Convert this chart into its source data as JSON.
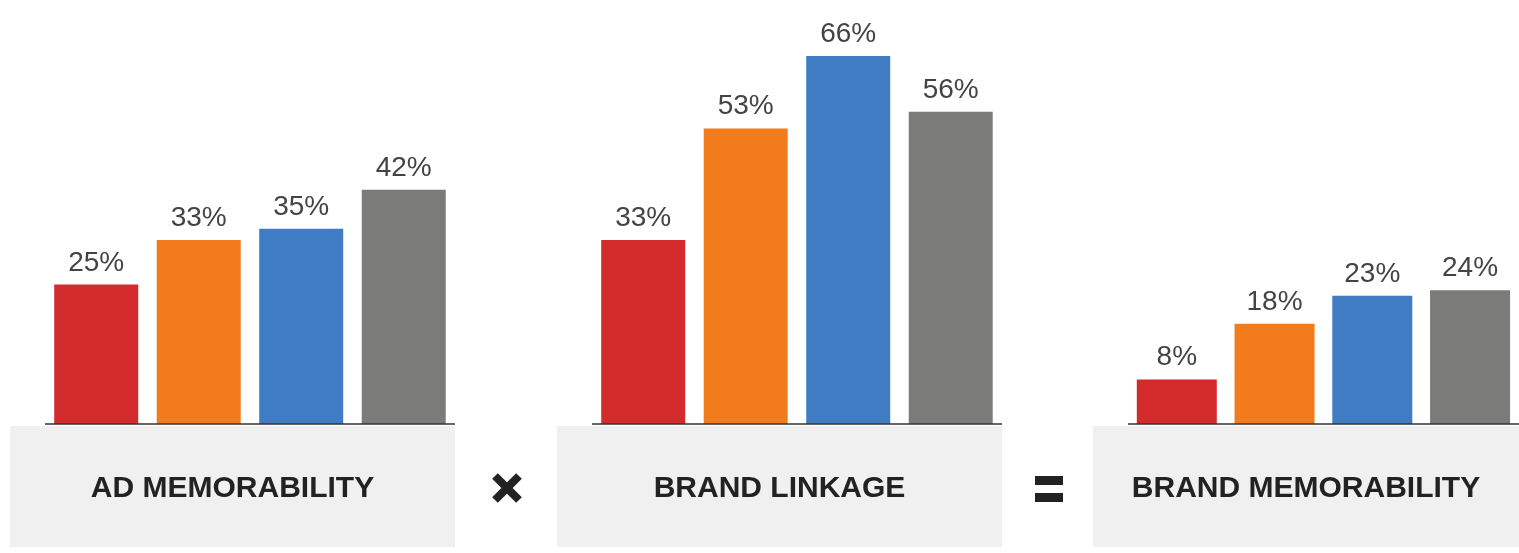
{
  "chart_data": [
    {
      "type": "bar",
      "title": "AD MEMORABILITY",
      "categories": [
        null,
        null,
        null,
        null
      ],
      "values": [
        25,
        33,
        35,
        42
      ],
      "colors": [
        "#d32a2b",
        "#f27c1c",
        "#3f7cc4",
        "#7b7c7a"
      ],
      "value_labels": [
        "25%",
        "33%",
        "35%",
        "42%"
      ],
      "tick_labels": false
    },
    {
      "type": "bar",
      "title": "BRAND LINKAGE",
      "categories": [
        null,
        null,
        null,
        null
      ],
      "values": [
        33,
        53,
        66,
        56
      ],
      "colors": [
        "#d32a2b",
        "#f27c1c",
        "#3f7cc4",
        "#7b7c7a"
      ],
      "value_labels": [
        "33%",
        "53%",
        "66%",
        "56%"
      ],
      "tick_labels": false
    },
    {
      "type": "bar",
      "title": "BRAND MEMORABILITY",
      "categories": [
        null,
        null,
        null,
        null
      ],
      "values": [
        8,
        18,
        23,
        24
      ],
      "colors": [
        "#d32a2b",
        "#f27c1c",
        "#3f7cc4",
        "#7b7c7a"
      ],
      "value_labels": [
        "8%",
        "18%",
        "23%",
        "24%"
      ],
      "tick_labels": false
    }
  ]
}
